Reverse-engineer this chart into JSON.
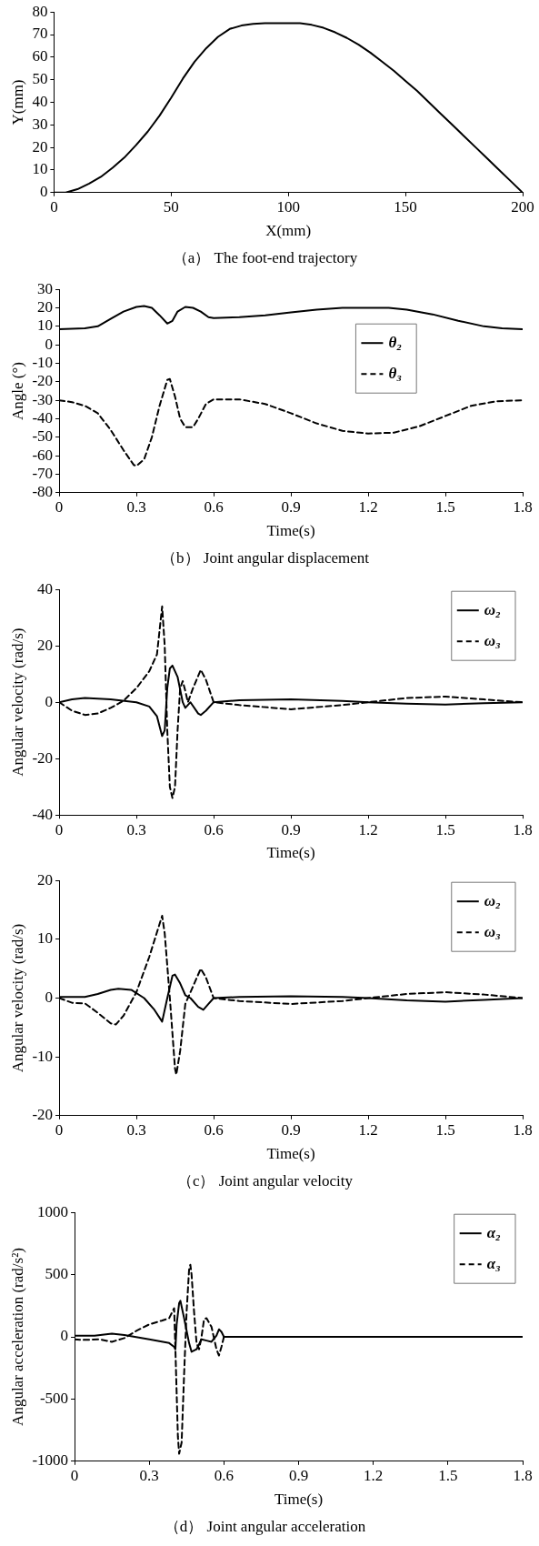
{
  "chart_data": [
    {
      "type": "line",
      "title": "（a） The foot-end trajectory",
      "xlabel": "X(mm)",
      "ylabel": "Y(mm)",
      "xlim": [
        0,
        200
      ],
      "ylim": [
        0,
        80
      ],
      "xticks": [
        0,
        50,
        100,
        150,
        200
      ],
      "yticks": [
        0,
        10,
        20,
        30,
        40,
        50,
        60,
        70,
        80
      ],
      "x": [
        0,
        5,
        10,
        15,
        20,
        25,
        30,
        35,
        40,
        45,
        50,
        55,
        60,
        65,
        70,
        75,
        80,
        85,
        90,
        100,
        105,
        110,
        115,
        120,
        125,
        130,
        135,
        140,
        145,
        150,
        155,
        160,
        165,
        170,
        175,
        180,
        185,
        190,
        195,
        200
      ],
      "series": [
        {
          "color": "#000000",
          "line_style": "solid",
          "values": [
            0,
            0,
            1.5,
            4,
            7,
            11,
            15.5,
            21,
            27,
            34,
            42,
            50.5,
            58,
            64,
            69,
            72.5,
            74,
            74.7,
            75,
            75,
            75,
            74.3,
            73,
            71,
            68.5,
            65.5,
            62,
            58,
            54,
            49.5,
            45,
            40,
            35,
            30,
            25,
            20,
            15,
            10,
            5,
            0
          ]
        }
      ]
    },
    {
      "type": "line",
      "title": "（b） Joint angular displacement",
      "xlabel": "Time(s)",
      "ylabel": "Angle (°)",
      "xlim": [
        0,
        1.8
      ],
      "ylim": [
        -80,
        30
      ],
      "xticks": [
        0,
        0.3,
        0.6,
        0.9,
        1.2,
        1.5,
        1.8
      ],
      "yticks": [
        -80,
        -70,
        -60,
        -50,
        -40,
        -30,
        -20,
        -10,
        0,
        10,
        20,
        30
      ],
      "legend": "right",
      "series": [
        {
          "name": "θ₂",
          "color": "#000000",
          "line_style": "solid",
          "x": [
            0,
            0.1,
            0.15,
            0.2,
            0.25,
            0.3,
            0.33,
            0.36,
            0.39,
            0.42,
            0.44,
            0.46,
            0.49,
            0.52,
            0.55,
            0.58,
            0.6,
            0.7,
            0.8,
            0.9,
            1.0,
            1.1,
            1.2,
            1.28,
            1.35,
            1.45,
            1.55,
            1.65,
            1.72,
            1.8
          ],
          "values": [
            8.5,
            9,
            10,
            14,
            18,
            20.5,
            21,
            20,
            16,
            11.5,
            13,
            18,
            20.5,
            20,
            18,
            15,
            14.5,
            15,
            16,
            17.5,
            19,
            20,
            20,
            20,
            19,
            16.5,
            13,
            10,
            9,
            8.5
          ]
        },
        {
          "name": "θ₃",
          "color": "#000000",
          "line_style": "dashed",
          "x": [
            0,
            0.05,
            0.1,
            0.15,
            0.2,
            0.25,
            0.29,
            0.3,
            0.33,
            0.36,
            0.39,
            0.42,
            0.43,
            0.45,
            0.47,
            0.49,
            0.52,
            0.54,
            0.57,
            0.6,
            0.7,
            0.8,
            0.9,
            1.0,
            1.1,
            1.2,
            1.3,
            1.4,
            1.5,
            1.6,
            1.7,
            1.8
          ],
          "values": [
            -30,
            -31,
            -33,
            -37,
            -46,
            -57,
            -65,
            -65.5,
            -62,
            -50,
            -33,
            -19,
            -18.5,
            -28,
            -40,
            -44.5,
            -44.5,
            -40,
            -32,
            -29.5,
            -29.5,
            -32,
            -37,
            -42.5,
            -46.5,
            -48,
            -47.5,
            -44,
            -38.5,
            -33,
            -30.5,
            -30
          ]
        }
      ]
    },
    {
      "type": "line",
      "xlabel": "Time(s)",
      "ylabel": "Angular velocity (rad/s)",
      "xlim": [
        0,
        1.8
      ],
      "ylim": [
        -40,
        40
      ],
      "xticks": [
        0,
        0.3,
        0.6,
        0.9,
        1.2,
        1.5,
        1.8
      ],
      "yticks": [
        -40,
        -20,
        0,
        20,
        40
      ],
      "legend": "top right",
      "series": [
        {
          "name": "ω₂",
          "color": "#000000",
          "line_style": "solid",
          "x": [
            0,
            0.05,
            0.1,
            0.2,
            0.3,
            0.35,
            0.38,
            0.4,
            0.41,
            0.42,
            0.43,
            0.44,
            0.46,
            0.48,
            0.49,
            0.51,
            0.54,
            0.55,
            0.57,
            0.6,
            0.7,
            0.9,
            1.1,
            1.2,
            1.35,
            1.5,
            1.65,
            1.8
          ],
          "values": [
            0,
            1,
            1.5,
            1,
            0,
            -1.5,
            -5,
            -12,
            -10,
            5,
            12,
            13,
            9,
            0,
            -2,
            0,
            -4,
            -4.5,
            -3,
            0,
            0.7,
            1,
            0.5,
            0,
            -0.5,
            -0.8,
            -0.3,
            0
          ]
        },
        {
          "name": "ω₃",
          "color": "#000000",
          "line_style": "dashed",
          "x": [
            0,
            0.05,
            0.1,
            0.15,
            0.2,
            0.25,
            0.3,
            0.35,
            0.38,
            0.4,
            0.41,
            0.42,
            0.43,
            0.44,
            0.45,
            0.46,
            0.47,
            0.48,
            0.49,
            0.5,
            0.52,
            0.55,
            0.57,
            0.6,
            0.7,
            0.9,
            1.1,
            1.2,
            1.35,
            1.5,
            1.65,
            1.8
          ],
          "values": [
            0,
            -3,
            -4.5,
            -4,
            -2,
            0.5,
            5,
            11,
            17,
            34,
            20,
            -10,
            -30,
            -34,
            -30,
            -10,
            5,
            7.5,
            4,
            0,
            5,
            11.5,
            8,
            0,
            -1,
            -2.5,
            -1,
            0,
            1.5,
            2,
            1,
            0
          ]
        }
      ]
    },
    {
      "type": "line",
      "title": "（c） Joint angular velocity",
      "xlabel": "Time(s)",
      "ylabel": "Angular velocity (rad/s)",
      "xlim": [
        0,
        1.8
      ],
      "ylim": [
        -20,
        20
      ],
      "xticks": [
        0,
        0.3,
        0.6,
        0.9,
        1.2,
        1.5,
        1.8
      ],
      "yticks": [
        -20,
        -10,
        0,
        10,
        20
      ],
      "legend": "top right",
      "series": [
        {
          "name": "ω₂",
          "color": "#000000",
          "line_style": "solid",
          "x": [
            0,
            0.1,
            0.15,
            0.2,
            0.23,
            0.28,
            0.33,
            0.37,
            0.4,
            0.42,
            0.44,
            0.45,
            0.47,
            0.49,
            0.51,
            0.54,
            0.56,
            0.58,
            0.6,
            0.7,
            0.9,
            1.1,
            1.2,
            1.35,
            1.5,
            1.65,
            1.8
          ],
          "values": [
            0.2,
            0.2,
            0.7,
            1.4,
            1.6,
            1.4,
            0,
            -2,
            -4,
            0,
            3.8,
            4,
            2.5,
            0.5,
            0,
            -1.5,
            -2,
            -1,
            0,
            0.2,
            0.3,
            0.2,
            0,
            -0.4,
            -0.6,
            -0.3,
            0
          ]
        },
        {
          "name": "ω₃",
          "color": "#000000",
          "line_style": "dashed",
          "x": [
            0,
            0.05,
            0.1,
            0.15,
            0.2,
            0.22,
            0.25,
            0.3,
            0.35,
            0.4,
            0.41,
            0.43,
            0.45,
            0.455,
            0.47,
            0.49,
            0.51,
            0.55,
            0.57,
            0.6,
            0.7,
            0.9,
            1.1,
            1.2,
            1.35,
            1.5,
            1.65,
            1.8
          ],
          "values": [
            0,
            -0.8,
            -0.9,
            -2.5,
            -4.3,
            -4.5,
            -3,
            1,
            7,
            14,
            11,
            0,
            -12,
            -13,
            -9,
            -1,
            1,
            5,
            3.5,
            0,
            -0.5,
            -1,
            -0.5,
            0,
            0.7,
            1,
            0.6,
            0
          ]
        }
      ]
    },
    {
      "type": "line",
      "title": "（d） Joint angular acceleration",
      "xlabel": "Time(s)",
      "ylabel": "Angular acceleration (rad/s²)",
      "xlim": [
        0,
        1.8
      ],
      "ylim": [
        -1000,
        1000
      ],
      "xticks": [
        0,
        0.3,
        0.6,
        0.9,
        1.2,
        1.5,
        1.8
      ],
      "yticks": [
        -1000,
        -500,
        0,
        500,
        1000
      ],
      "legend": "top right",
      "series": [
        {
          "name": "α₂",
          "color": "#000000",
          "line_style": "solid",
          "x": [
            0,
            0.08,
            0.15,
            0.2,
            0.3,
            0.38,
            0.4,
            0.405,
            0.41,
            0.42,
            0.425,
            0.44,
            0.46,
            0.47,
            0.49,
            0.51,
            0.53,
            0.55,
            0.57,
            0.58,
            0.59,
            0.6,
            1.8
          ],
          "values": [
            10,
            10,
            25,
            15,
            -20,
            -50,
            -80,
            -100,
            100,
            270,
            290,
            150,
            -50,
            -120,
            -100,
            -20,
            -30,
            -40,
            10,
            60,
            40,
            0,
            0
          ]
        },
        {
          "name": "α₃",
          "color": "#000000",
          "line_style": "dashed",
          "x": [
            0,
            0.03,
            0.1,
            0.15,
            0.2,
            0.25,
            0.3,
            0.35,
            0.38,
            0.4,
            0.405,
            0.415,
            0.42,
            0.43,
            0.44,
            0.45,
            0.46,
            0.465,
            0.47,
            0.48,
            0.49,
            0.5,
            0.51,
            0.52,
            0.53,
            0.55,
            0.57,
            0.58,
            0.59,
            0.6,
            1.8
          ],
          "values": [
            -20,
            -25,
            -20,
            -40,
            -10,
            50,
            100,
            130,
            150,
            230,
            -100,
            -800,
            -940,
            -850,
            -300,
            200,
            540,
            580,
            500,
            200,
            -50,
            -100,
            0,
            140,
            150,
            80,
            -100,
            -150,
            -80,
            0,
            0
          ]
        }
      ]
    }
  ]
}
